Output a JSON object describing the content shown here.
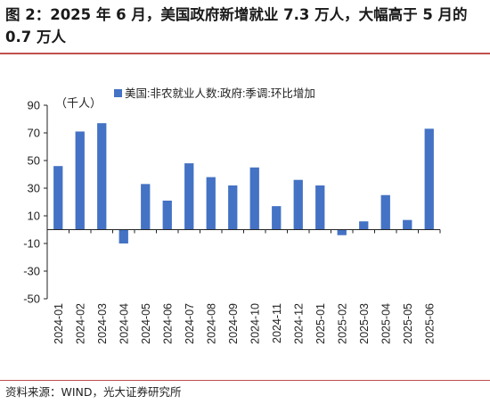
{
  "title": "图 2：2025 年 6 月，美国政府新增就业 7.3 万人，大幅高于 5 月的 0.7 万人",
  "source": "资料来源：WIND，光大证券研究所",
  "colors": {
    "bar": "#4472c4",
    "rule": "#c0504d",
    "axis": "#222222"
  },
  "chart_data": {
    "type": "bar",
    "unit_label": "（千人）",
    "categories": [
      "2024-01",
      "2024-02",
      "2024-03",
      "2024-04",
      "2024-05",
      "2024-06",
      "2024-07",
      "2024-08",
      "2024-09",
      "2024-10",
      "2024-11",
      "2024-12",
      "2025-01",
      "2025-02",
      "2025-03",
      "2025-04",
      "2025-05",
      "2025-06"
    ],
    "series": [
      {
        "name": "美国:非农就业人数:政府:季调:环比增加",
        "values": [
          46,
          71,
          77,
          -10,
          33,
          21,
          48,
          38,
          32,
          45,
          17,
          36,
          32,
          -4,
          6,
          25,
          7,
          73
        ]
      }
    ],
    "ylim": [
      -50,
      90
    ],
    "yticks": [
      90,
      70,
      50,
      30,
      10,
      -10,
      -30,
      -50
    ],
    "legend_position": "top",
    "grid": false
  }
}
